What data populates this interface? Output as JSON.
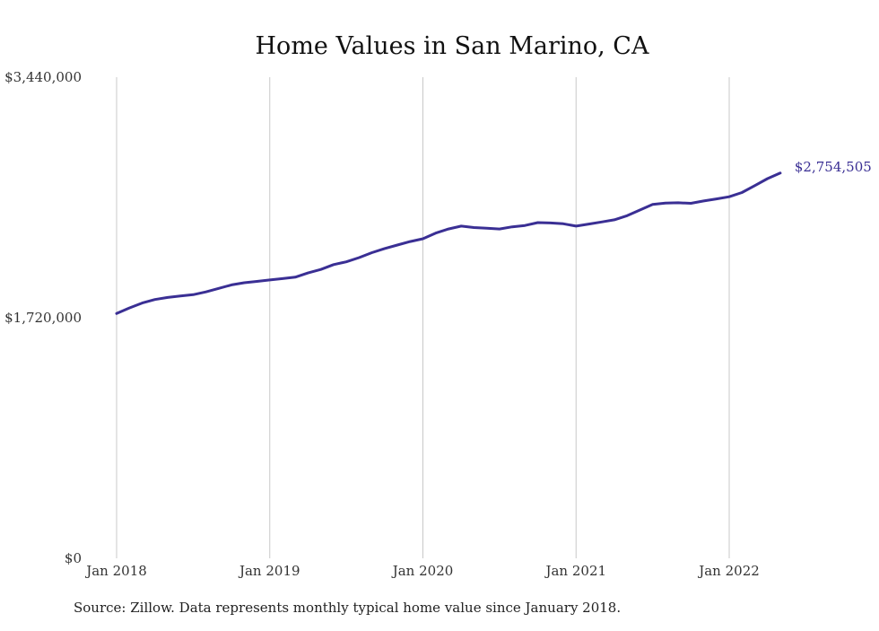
{
  "chart_data": {
    "type": "line",
    "title": "Home Values in San Marino, CA",
    "xlabel": "",
    "ylabel": "",
    "source_note": "Source: Zillow. Data represents monthly typical home value since January 2018.",
    "ylim": [
      0,
      3440000
    ],
    "y_ticks": [
      {
        "value": 3440000,
        "label": "$3,440,000"
      },
      {
        "value": 1720000,
        "label": "$1,720,000"
      },
      {
        "value": 0,
        "label": "$0"
      }
    ],
    "x_ticks": [
      {
        "value": "2018-01",
        "label": "Jan 2018"
      },
      {
        "value": "2019-01",
        "label": "Jan 2019"
      },
      {
        "value": "2020-01",
        "label": "Jan 2020"
      },
      {
        "value": "2021-01",
        "label": "Jan 2021"
      },
      {
        "value": "2022-01",
        "label": "Jan 2022"
      }
    ],
    "grid": {
      "vertical": true,
      "horizontal": false
    },
    "legend": "none",
    "end_label": "$2,754,505",
    "series": [
      {
        "color": "#3a2f94",
        "x": [
          "2018-01",
          "2018-02",
          "2018-03",
          "2018-04",
          "2018-05",
          "2018-06",
          "2018-07",
          "2018-08",
          "2018-09",
          "2018-10",
          "2018-11",
          "2018-12",
          "2019-01",
          "2019-02",
          "2019-03",
          "2019-04",
          "2019-05",
          "2019-06",
          "2019-07",
          "2019-08",
          "2019-09",
          "2019-10",
          "2019-11",
          "2019-12",
          "2020-01",
          "2020-02",
          "2020-03",
          "2020-04",
          "2020-05",
          "2020-06",
          "2020-07",
          "2020-08",
          "2020-09",
          "2020-10",
          "2020-11",
          "2020-12",
          "2021-01",
          "2021-02",
          "2021-03",
          "2021-04",
          "2021-05",
          "2021-06",
          "2021-07",
          "2021-08",
          "2021-09",
          "2021-10",
          "2021-11",
          "2021-12",
          "2022-01",
          "2022-02",
          "2022-03",
          "2022-04",
          "2022-05"
        ],
        "y": [
          1750000,
          1790000,
          1825000,
          1850000,
          1865000,
          1875000,
          1885000,
          1905000,
          1930000,
          1955000,
          1970000,
          1980000,
          1990000,
          2000000,
          2010000,
          2040000,
          2065000,
          2100000,
          2120000,
          2150000,
          2185000,
          2215000,
          2240000,
          2265000,
          2285000,
          2325000,
          2355000,
          2375000,
          2365000,
          2360000,
          2355000,
          2370000,
          2380000,
          2400000,
          2398000,
          2392000,
          2375000,
          2390000,
          2405000,
          2420000,
          2450000,
          2490000,
          2530000,
          2540000,
          2542000,
          2538000,
          2555000,
          2570000,
          2585000,
          2615000,
          2665000,
          2715000,
          2754505
        ]
      }
    ]
  }
}
